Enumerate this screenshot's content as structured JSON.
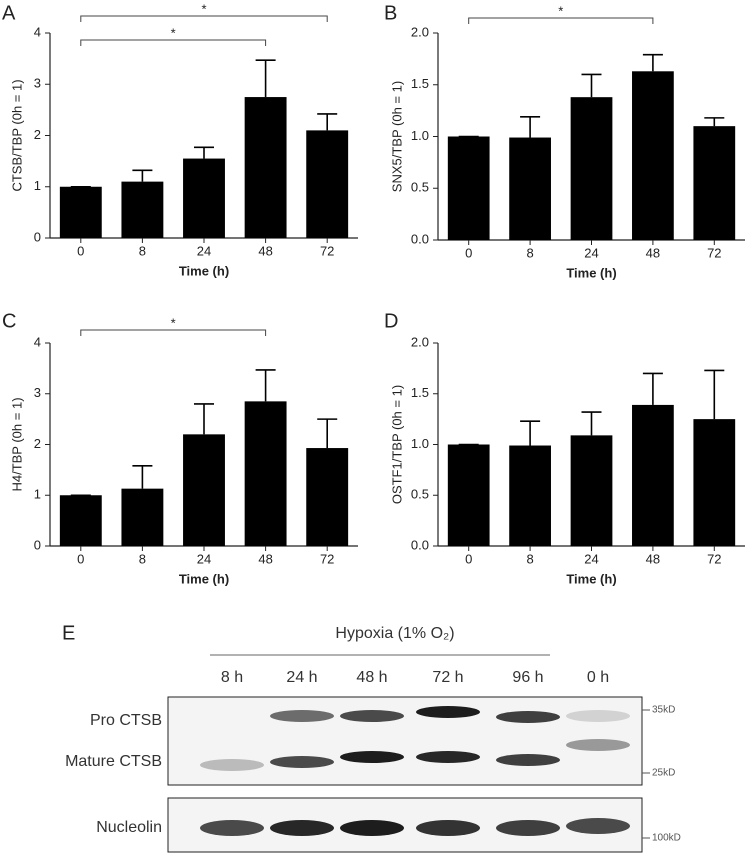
{
  "chart_data": [
    {
      "type": "bar",
      "panel": "A",
      "ylabel": "CTSB/TBP (0h = 1)",
      "xlabel": "Time (h)",
      "categories": [
        "0",
        "8",
        "24",
        "48",
        "72"
      ],
      "values": [
        1.0,
        1.1,
        1.55,
        2.75,
        2.1
      ],
      "errors": [
        0,
        0.22,
        0.22,
        0.72,
        0.32
      ],
      "color": "#000000",
      "ylim": [
        0,
        4
      ],
      "yticks": [
        0,
        1,
        2,
        3,
        4
      ],
      "significance": [
        {
          "from": "0",
          "to": "72",
          "label": "*"
        },
        {
          "from": "0",
          "to": "48",
          "label": "*"
        }
      ]
    },
    {
      "type": "bar",
      "panel": "B",
      "ylabel": "SNX5/TBP (0h = 1)",
      "xlabel": "Time (h)",
      "categories": [
        "0",
        "8",
        "24",
        "48",
        "72"
      ],
      "values": [
        1.0,
        0.99,
        1.38,
        1.63,
        1.1
      ],
      "errors": [
        0,
        0.2,
        0.22,
        0.16,
        0.08
      ],
      "color": "#000000",
      "ylim": [
        0,
        2
      ],
      "yticks": [
        {
          "value": 0,
          "label": "0.0"
        },
        0.5,
        {
          "value": 1,
          "label": "1.0"
        },
        1.5,
        {
          "value": 2,
          "label": "2.0"
        }
      ],
      "significance": [
        {
          "from": "0",
          "to": "48",
          "label": "*"
        }
      ]
    },
    {
      "type": "bar",
      "panel": "C",
      "ylabel": "H4/TBP (0h = 1)",
      "xlabel": "Time (h)",
      "categories": [
        "0",
        "8",
        "24",
        "48",
        "72"
      ],
      "values": [
        1.0,
        1.13,
        2.2,
        2.85,
        1.93
      ],
      "errors": [
        0,
        0.45,
        0.6,
        0.62,
        0.57
      ],
      "color": "#000000",
      "ylim": [
        0,
        4
      ],
      "yticks": [
        0,
        1,
        2,
        3,
        4
      ],
      "significance": [
        {
          "from": "0",
          "to": "48",
          "label": "*"
        }
      ]
    },
    {
      "type": "bar",
      "panel": "D",
      "ylabel": "OSTF1/TBP (0h = 1)",
      "xlabel": "Time (h)",
      "categories": [
        "0",
        "8",
        "24",
        "48",
        "72"
      ],
      "values": [
        1.0,
        0.99,
        1.09,
        1.39,
        1.25
      ],
      "errors": [
        0,
        0.24,
        0.23,
        0.31,
        0.48
      ],
      "color": "#000000",
      "ylim": [
        0,
        2
      ],
      "yticks": [
        {
          "value": 0,
          "label": "0.0"
        },
        0.5,
        {
          "value": 1,
          "label": "1.0"
        },
        1.5,
        {
          "value": 2,
          "label": "2.0"
        }
      ],
      "significance": []
    }
  ],
  "blot": {
    "panel": "E",
    "title": "Hypoxia (1% O₂)",
    "lanes": [
      "8 h",
      "24 h",
      "48 h",
      "72 h",
      "96 h",
      "0 h"
    ],
    "rows": [
      "Pro CTSB",
      "Mature CTSB",
      "Nucleolin"
    ],
    "markers": [
      "35kD",
      "25kD",
      "100kD"
    ]
  }
}
